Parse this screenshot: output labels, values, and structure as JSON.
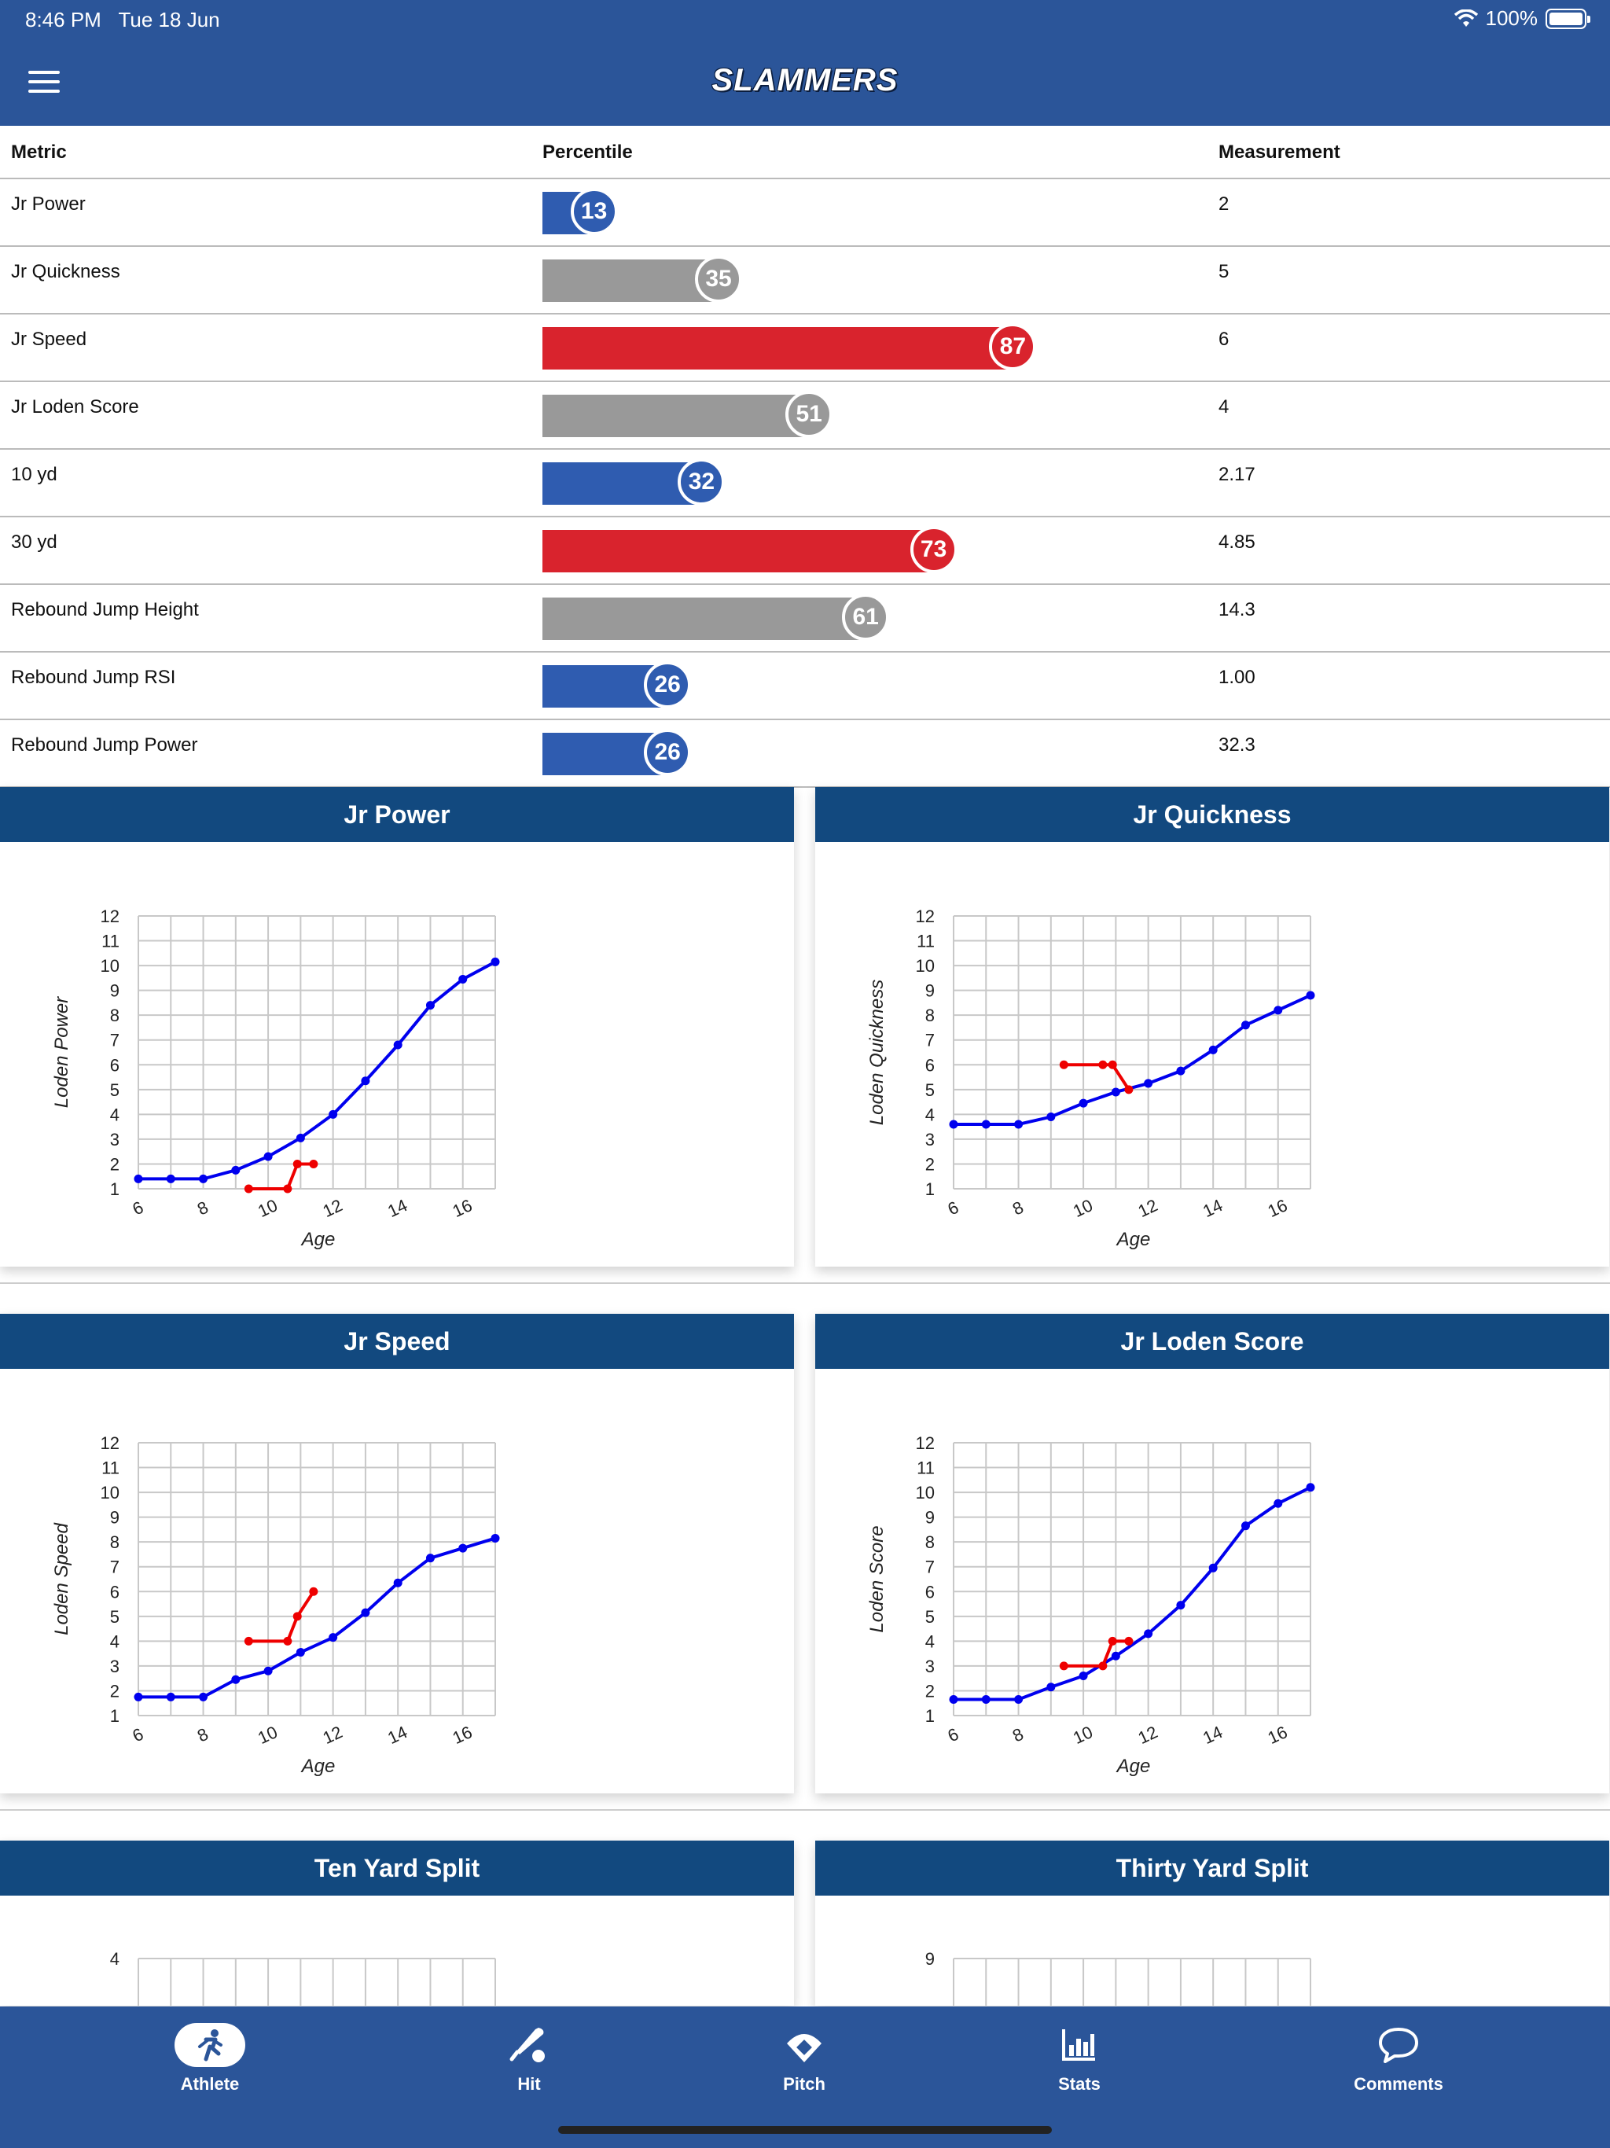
{
  "status": {
    "time": "8:46 PM",
    "date": "Tue 18 Jun",
    "battery": "100%"
  },
  "header": {
    "logo": "SLAMMERS"
  },
  "table": {
    "headers": {
      "metric": "Metric",
      "percentile": "Percentile",
      "measurement": "Measurement"
    },
    "rows": [
      {
        "metric": "Jr Power",
        "percentile": 13,
        "percentile_label": "13",
        "measurement": "2",
        "color": "#2f5cb0"
      },
      {
        "metric": "Jr Quickness",
        "percentile": 35,
        "percentile_label": "35",
        "measurement": "5",
        "color": "#999999"
      },
      {
        "metric": "Jr Speed",
        "percentile": 87,
        "percentile_label": "87",
        "measurement": "6",
        "color": "#d9232d"
      },
      {
        "metric": "Jr Loden Score",
        "percentile": 51,
        "percentile_label": "51",
        "measurement": "4",
        "color": "#999999"
      },
      {
        "metric": "10 yd",
        "percentile": 32,
        "percentile_label": "32",
        "measurement": "2.17",
        "color": "#2f5cb0"
      },
      {
        "metric": "30 yd",
        "percentile": 73,
        "percentile_label": "73",
        "measurement": "4.85",
        "color": "#d9232d"
      },
      {
        "metric": "Rebound Jump Height",
        "percentile": 61,
        "percentile_label": "61",
        "measurement": "14.3",
        "color": "#999999"
      },
      {
        "metric": "Rebound Jump RSI",
        "percentile": 26,
        "percentile_label": "26",
        "measurement": "1.00",
        "color": "#2f5cb0"
      },
      {
        "metric": "Rebound Jump Power",
        "percentile": 26,
        "percentile_label": "26",
        "measurement": "32.3",
        "color": "#2f5cb0"
      }
    ]
  },
  "chart_data": [
    {
      "type": "line",
      "title": "Jr Power",
      "xlabel": "Age",
      "ylabel": "Loden Power",
      "xlim": [
        6,
        17
      ],
      "ylim": [
        1,
        12
      ],
      "x_ticks": [
        "6",
        "8",
        "10",
        "12",
        "14",
        "16"
      ],
      "y_ticks": [
        "1",
        "2",
        "3",
        "4",
        "5",
        "6",
        "7",
        "8",
        "9",
        "10",
        "11",
        "12"
      ],
      "series": [
        {
          "color": "#0000ee",
          "x": [
            6,
            7,
            8,
            9,
            10,
            11,
            12,
            13,
            14,
            15,
            16,
            17
          ],
          "y": [
            1.4,
            1.4,
            1.4,
            1.75,
            2.3,
            3.05,
            4.0,
            5.35,
            6.8,
            8.4,
            9.45,
            10.15
          ]
        },
        {
          "color": "#ee0000",
          "x": [
            9.4,
            10.6,
            10.9,
            11.4
          ],
          "y": [
            1,
            1,
            2,
            2
          ]
        }
      ]
    },
    {
      "type": "line",
      "title": "Jr Quickness",
      "xlabel": "Age",
      "ylabel": "Loden Quickness",
      "xlim": [
        6,
        17
      ],
      "ylim": [
        1,
        12
      ],
      "x_ticks": [
        "6",
        "8",
        "10",
        "12",
        "14",
        "16"
      ],
      "y_ticks": [
        "1",
        "2",
        "3",
        "4",
        "5",
        "6",
        "7",
        "8",
        "9",
        "10",
        "11",
        "12"
      ],
      "series": [
        {
          "color": "#0000ee",
          "x": [
            6,
            7,
            8,
            9,
            10,
            11,
            12,
            13,
            14,
            15,
            16,
            17
          ],
          "y": [
            3.6,
            3.6,
            3.6,
            3.9,
            4.45,
            4.9,
            5.25,
            5.75,
            6.6,
            7.6,
            8.2,
            8.8
          ]
        },
        {
          "color": "#ee0000",
          "x": [
            9.4,
            10.6,
            10.9,
            11.4
          ],
          "y": [
            6,
            6,
            6,
            5
          ]
        }
      ]
    },
    {
      "type": "line",
      "title": "Jr Speed",
      "xlabel": "Age",
      "ylabel": "Loden Speed",
      "xlim": [
        6,
        17
      ],
      "ylim": [
        1,
        12
      ],
      "x_ticks": [
        "6",
        "8",
        "10",
        "12",
        "14",
        "16"
      ],
      "y_ticks": [
        "1",
        "2",
        "3",
        "4",
        "5",
        "6",
        "7",
        "8",
        "9",
        "10",
        "11",
        "12"
      ],
      "series": [
        {
          "color": "#0000ee",
          "x": [
            6,
            7,
            8,
            9,
            10,
            11,
            12,
            13,
            14,
            15,
            16,
            17
          ],
          "y": [
            1.75,
            1.75,
            1.75,
            2.45,
            2.8,
            3.55,
            4.15,
            5.15,
            6.35,
            7.35,
            7.75,
            8.15
          ]
        },
        {
          "color": "#ee0000",
          "x": [
            9.4,
            10.6,
            10.9,
            11.4
          ],
          "y": [
            4,
            4,
            5,
            6
          ]
        }
      ]
    },
    {
      "type": "line",
      "title": "Jr Loden Score",
      "xlabel": "Age",
      "ylabel": "Loden Score",
      "xlim": [
        6,
        17
      ],
      "ylim": [
        1,
        12
      ],
      "x_ticks": [
        "6",
        "8",
        "10",
        "12",
        "14",
        "16"
      ],
      "y_ticks": [
        "1",
        "2",
        "3",
        "4",
        "5",
        "6",
        "7",
        "8",
        "9",
        "10",
        "11",
        "12"
      ],
      "series": [
        {
          "color": "#0000ee",
          "x": [
            6,
            7,
            8,
            9,
            10,
            11,
            12,
            13,
            14,
            15,
            16,
            17
          ],
          "y": [
            1.65,
            1.65,
            1.65,
            2.15,
            2.6,
            3.4,
            4.3,
            5.45,
            6.95,
            8.65,
            9.55,
            10.2
          ]
        },
        {
          "color": "#ee0000",
          "x": [
            9.4,
            10.6,
            10.9,
            11.4
          ],
          "y": [
            3,
            3,
            4,
            4
          ]
        }
      ]
    },
    {
      "type": "line",
      "title": "Ten Yard Split",
      "xlabel": "",
      "ylabel": "",
      "y_ticks": [
        "4"
      ],
      "series": []
    },
    {
      "type": "line",
      "title": "Thirty Yard Split",
      "xlabel": "",
      "ylabel": "",
      "y_ticks": [
        "9"
      ],
      "series": []
    }
  ],
  "tabbar": {
    "items": [
      {
        "label": "Athlete",
        "icon": "running-person-icon",
        "active": true
      },
      {
        "label": "Hit",
        "icon": "bat-and-ball-icon",
        "active": false
      },
      {
        "label": "Pitch",
        "icon": "baseball-diamond-icon",
        "active": false
      },
      {
        "label": "Stats",
        "icon": "bar-chart-icon",
        "active": false
      },
      {
        "label": "Comments",
        "icon": "chat-bubble-icon",
        "active": false
      }
    ]
  }
}
